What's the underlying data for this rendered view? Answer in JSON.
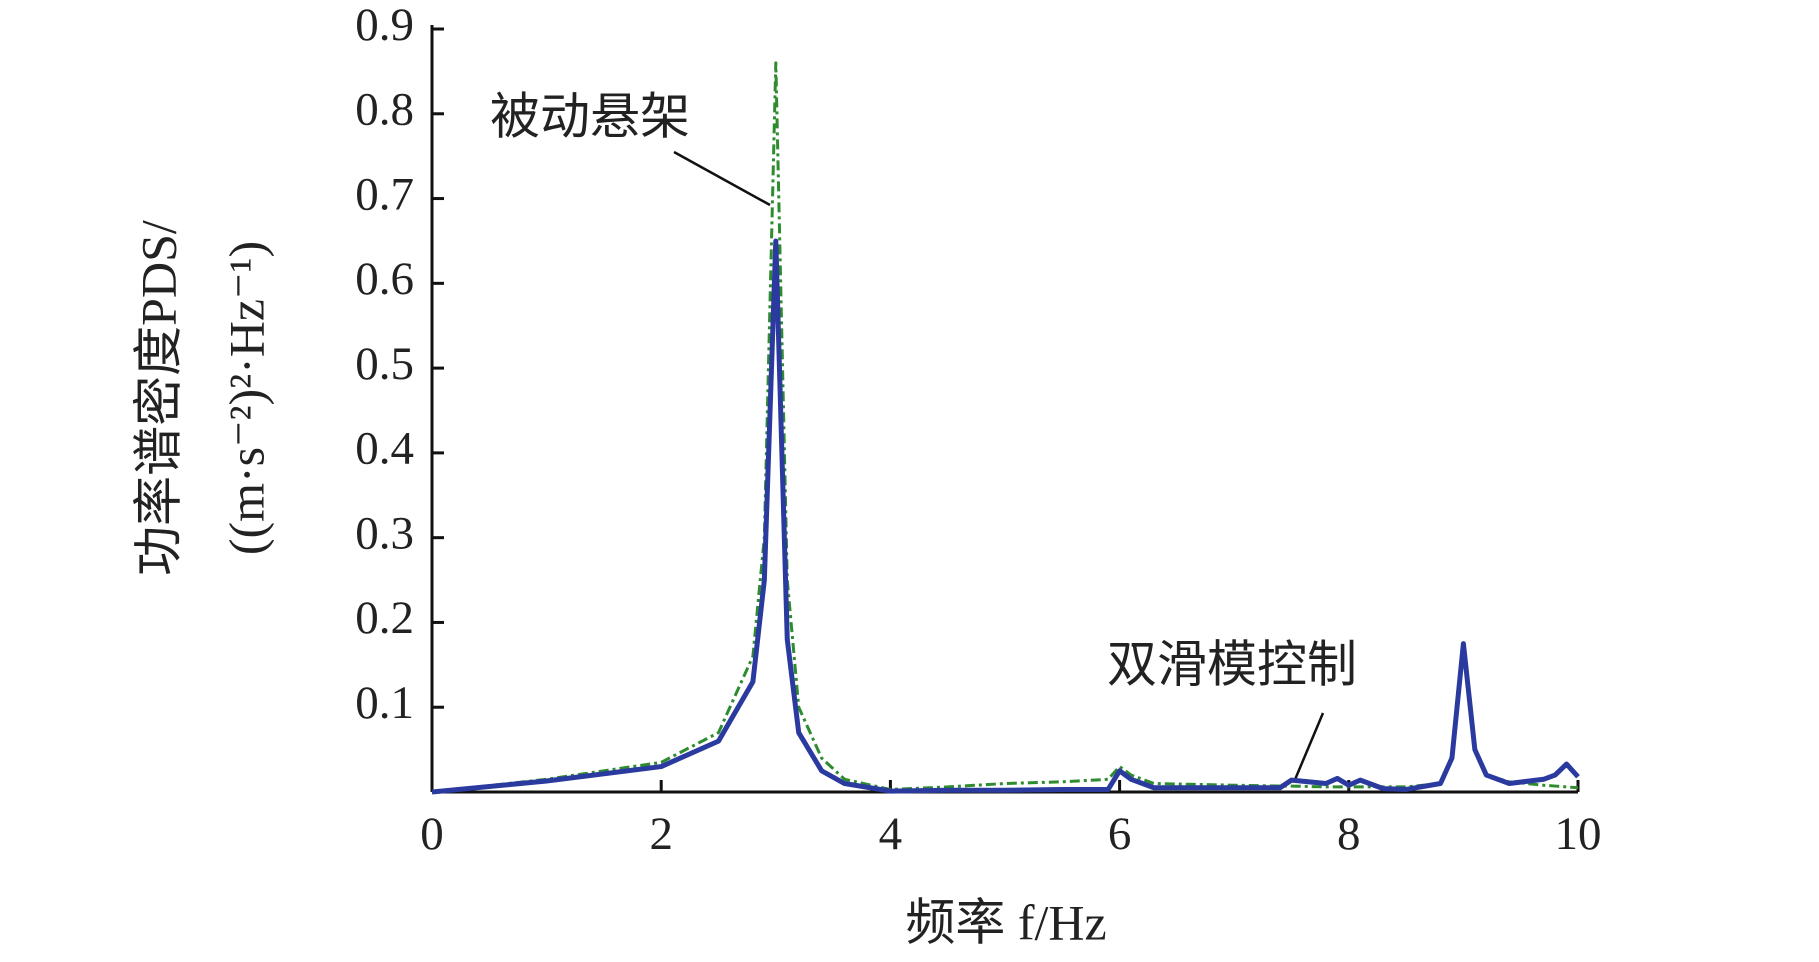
{
  "chart_data": {
    "type": "line",
    "x_label": "频率 f/Hz",
    "y_label": [
      "功率谱密度PDS/",
      "((m·s⁻²)²·Hz⁻¹)"
    ],
    "x": [
      0,
      1,
      2,
      2.5,
      2.8,
      2.9,
      3.0,
      3.1,
      3.2,
      3.4,
      3.6,
      4,
      4.5,
      5,
      5.5,
      5.9,
      6.0,
      6.1,
      6.3,
      7,
      7.4,
      7.5,
      7.8,
      7.9,
      8.0,
      8.1,
      8.3,
      8.5,
      8.8,
      8.9,
      9.0,
      9.1,
      9.2,
      9.4,
      9.7,
      9.8,
      9.9,
      10
    ],
    "series": [
      {
        "name": "被动悬架",
        "color": "#2e8b2e",
        "dash": true,
        "values": [
          0,
          0.015,
          0.035,
          0.07,
          0.16,
          0.3,
          0.86,
          0.25,
          0.1,
          0.04,
          0.015,
          0.003,
          0.006,
          0.01,
          0.012,
          0.015,
          0.03,
          0.02,
          0.01,
          0.008,
          0.007,
          0.007,
          0.006,
          0.006,
          0.006,
          0.006,
          0.006,
          0.006,
          0.01,
          0.04,
          0.17,
          0.05,
          0.02,
          0.012,
          0.008,
          0.007,
          0.006,
          0.005
        ]
      },
      {
        "name": "双滑模控制",
        "color": "#2b3a9e",
        "dash": false,
        "values": [
          0,
          0.013,
          0.03,
          0.06,
          0.13,
          0.25,
          0.65,
          0.18,
          0.07,
          0.025,
          0.01,
          0.001,
          0.002,
          0.002,
          0.003,
          0.003,
          0.025,
          0.015,
          0.005,
          0.005,
          0.005,
          0.014,
          0.01,
          0.016,
          0.008,
          0.014,
          0.004,
          0.003,
          0.01,
          0.04,
          0.175,
          0.05,
          0.02,
          0.01,
          0.015,
          0.02,
          0.033,
          0.018
        ]
      }
    ],
    "xlim": [
      0,
      10
    ],
    "xticks": [
      0,
      2,
      4,
      6,
      8,
      10
    ],
    "ylim": [
      0,
      0.9
    ],
    "yticks": [
      0.1,
      0.2,
      0.3,
      0.4,
      0.5,
      0.6,
      0.7,
      0.8,
      0.9
    ],
    "grid": false
  }
}
